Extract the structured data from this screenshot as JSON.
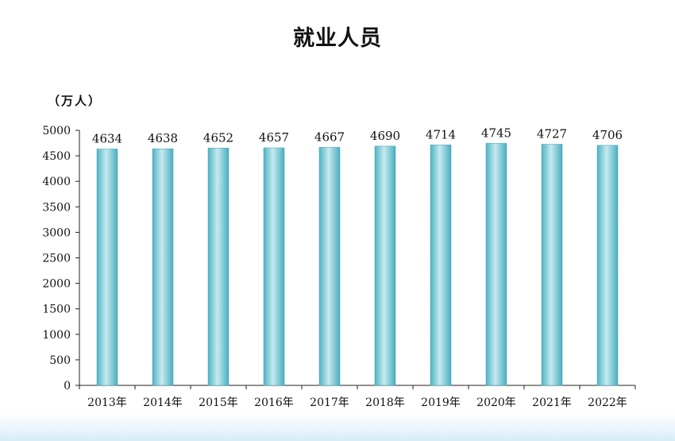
{
  "title": "就业人员",
  "unit": "（万人）",
  "chart_data": {
    "type": "bar",
    "title": "就业人员",
    "ylabel": "（万人）",
    "xlabel": "",
    "categories": [
      "2013年",
      "2014年",
      "2015年",
      "2016年",
      "2017年",
      "2018年",
      "2019年",
      "2020年",
      "2021年",
      "2022年"
    ],
    "values": [
      4634,
      4638,
      4652,
      4657,
      4667,
      4690,
      4714,
      4745,
      4727,
      4706
    ],
    "ylim": [
      0,
      5000
    ],
    "yticks": [
      0,
      500,
      1000,
      1500,
      2000,
      2500,
      3000,
      3500,
      4000,
      4500,
      5000
    ],
    "grid": false,
    "legend": "none",
    "bar_color": "#5bbccb",
    "bar_highlight": "#bfe7ee"
  }
}
